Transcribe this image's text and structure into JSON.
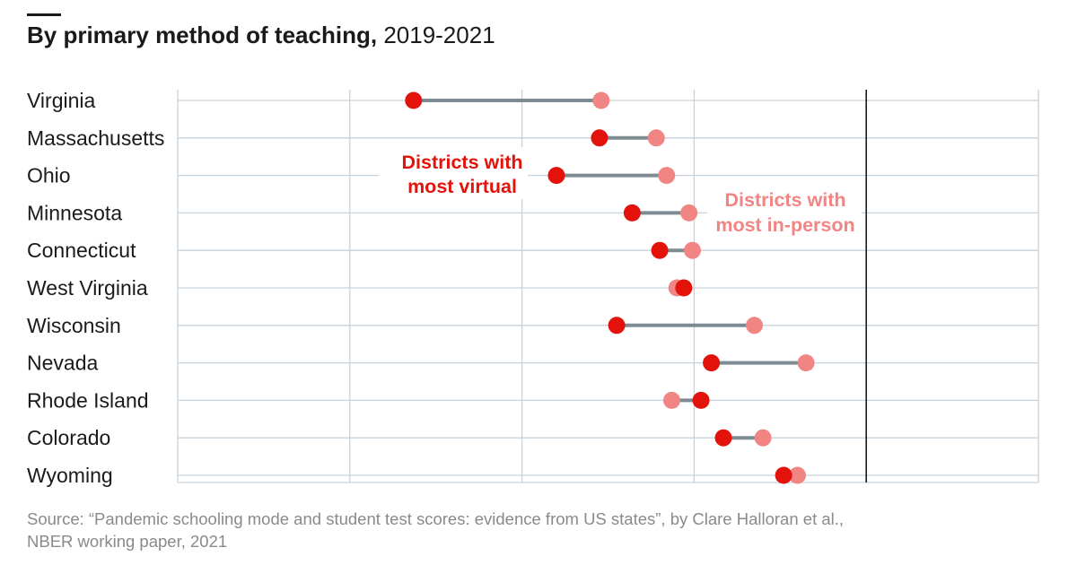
{
  "title": {
    "bold": "By primary method of teaching,",
    "regular": "2019-2021"
  },
  "chart_data": {
    "type": "dumbbell",
    "title": "By primary method of teaching, 2019-2021",
    "categories": [
      "Virginia",
      "Massachusetts",
      "Ohio",
      "Minnesota",
      "Connecticut",
      "West Virginia",
      "Wisconsin",
      "Nevada",
      "Rhode Island",
      "Colorado",
      "Wyoming"
    ],
    "series": [
      {
        "name": "Districts with most virtual",
        "color": "#e3120b",
        "values": [
          -16.3,
          -5.5,
          -8.0,
          -3.6,
          -2.0,
          -0.6,
          -4.5,
          1.0,
          0.4,
          1.7,
          5.2
        ]
      },
      {
        "name": "Districts with most in-person",
        "color": "#f08584",
        "values": [
          -5.4,
          -2.2,
          -1.6,
          -0.3,
          -0.1,
          -1.0,
          3.5,
          6.5,
          -1.3,
          4.0,
          6.0
        ]
      }
    ],
    "xlim": [
      -30,
      20
    ],
    "x_gridlines": [
      -30,
      -20,
      -10,
      0,
      10,
      20
    ],
    "reference_line": 10,
    "labels": {
      "virtual": [
        "Districts with",
        "most virtual"
      ],
      "inperson": [
        "Districts with",
        "most in-person"
      ]
    },
    "colors": {
      "connector": "#7e8b92",
      "grid": "#c6d3dc",
      "reference": "#1a1a1a"
    }
  },
  "source": {
    "line1": "Source: “Pandemic schooling mode and student test scores: evidence from US states”, by Clare Halloran et al.,",
    "line2": "NBER working paper, 2021"
  }
}
